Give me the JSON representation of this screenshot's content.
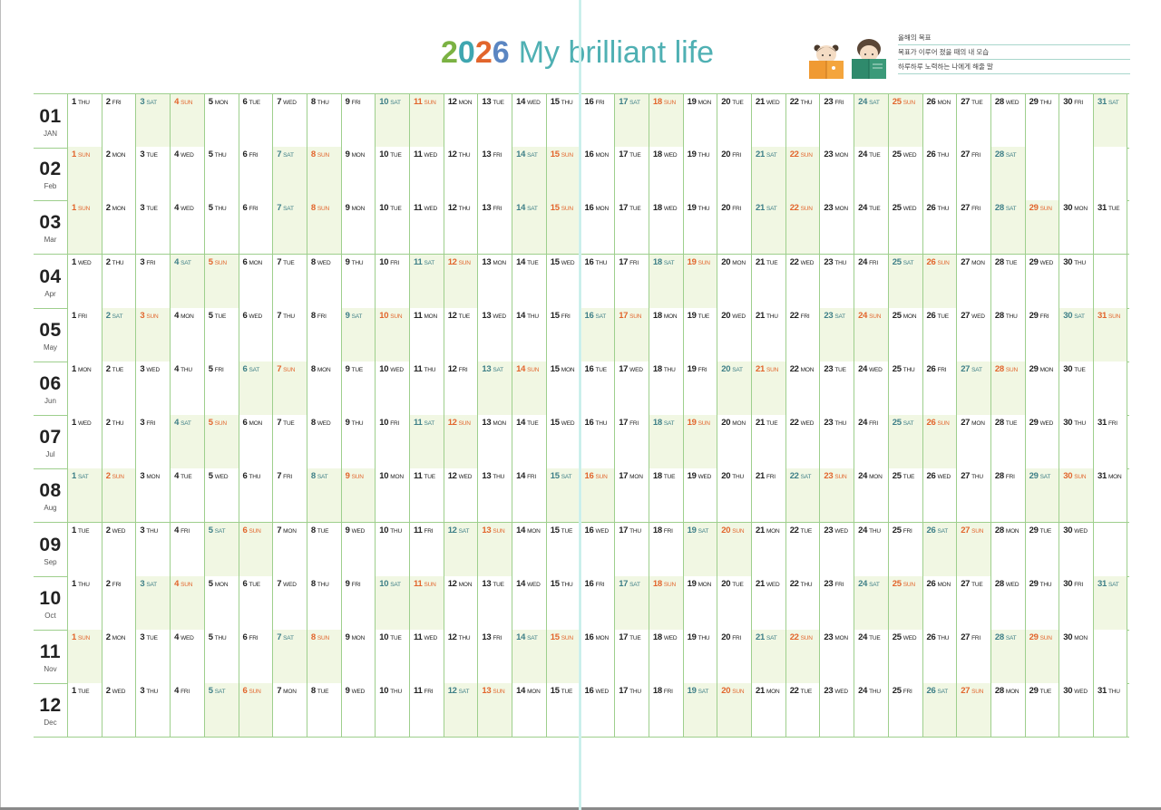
{
  "header": {
    "year": "2026",
    "year_digits": [
      {
        "ch": "2",
        "color": "#7bb243"
      },
      {
        "ch": "0",
        "color": "#3fa6b0"
      },
      {
        "ch": "2",
        "color": "#e2652c"
      },
      {
        "ch": "6",
        "color": "#5b86c2"
      }
    ],
    "title": "My brilliant life",
    "title_color": "#4fb0b3"
  },
  "goals": [
    {
      "label": "올해의 목표"
    },
    {
      "label": "목표가 이루어 졌을 때의 내 모습"
    },
    {
      "label": "하루하루 노력하는 나에게 해줄 말"
    }
  ],
  "colors": {
    "grid_line": "#9ecf8d",
    "weekend_fill": "#f1f7e3",
    "saturday_text": "#3e7f87",
    "sunday_text": "#e2652c",
    "weekday_text": "#222222"
  },
  "weekday_names": [
    "SUN",
    "MON",
    "TUE",
    "WED",
    "THU",
    "FRI",
    "SAT"
  ],
  "months": [
    {
      "num": "01",
      "name": "JAN",
      "start_weekday": 4,
      "days": 31
    },
    {
      "num": "02",
      "name": "Feb",
      "start_weekday": 0,
      "days": 28
    },
    {
      "num": "03",
      "name": "Mar",
      "start_weekday": 0,
      "days": 31
    },
    {
      "num": "04",
      "name": "Apr",
      "start_weekday": 3,
      "days": 30
    },
    {
      "num": "05",
      "name": "May",
      "start_weekday": 5,
      "days": 31
    },
    {
      "num": "06",
      "name": "Jun",
      "start_weekday": 1,
      "days": 30
    },
    {
      "num": "07",
      "name": "Jul",
      "start_weekday": 3,
      "days": 31
    },
    {
      "num": "08",
      "name": "Aug",
      "start_weekday": 6,
      "days": 31
    },
    {
      "num": "09",
      "name": "Sep",
      "start_weekday": 2,
      "days": 30
    },
    {
      "num": "10",
      "name": "Oct",
      "start_weekday": 4,
      "days": 31
    },
    {
      "num": "11",
      "name": "Nov",
      "start_weekday": 0,
      "days": 30
    },
    {
      "num": "12",
      "name": "Dec",
      "start_weekday": 2,
      "days": 31
    }
  ]
}
